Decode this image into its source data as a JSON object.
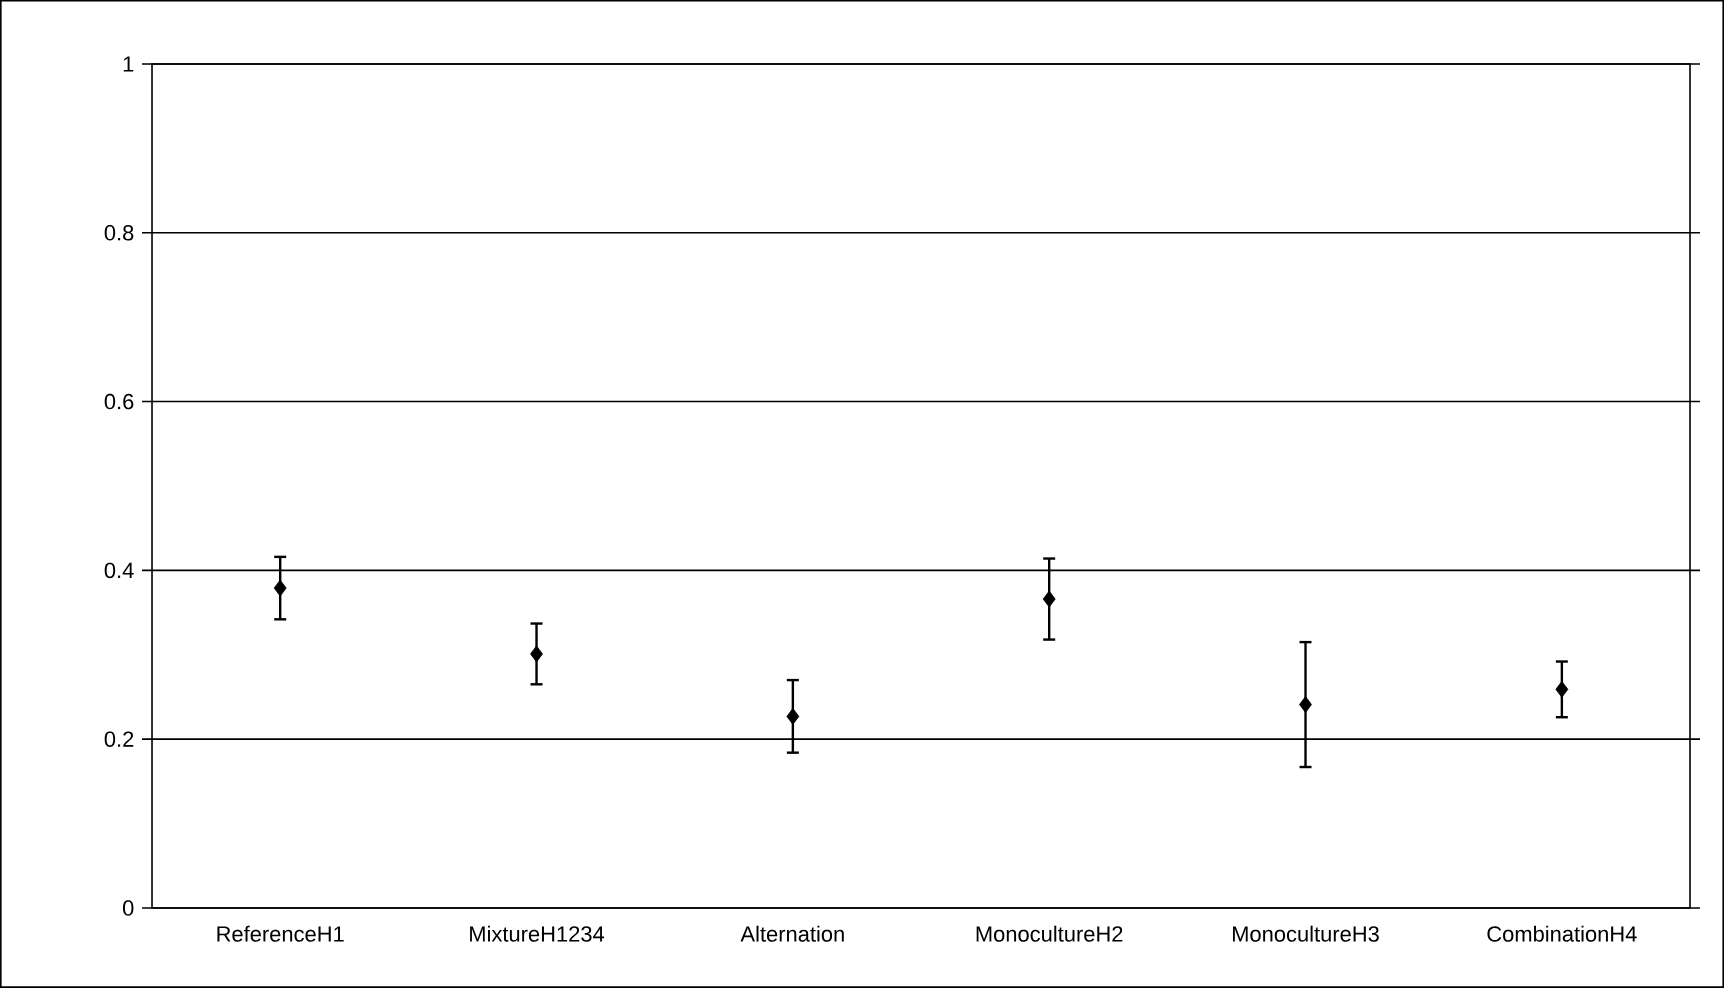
{
  "chart_data": {
    "type": "scatter",
    "categories": [
      "ReferenceH1",
      "MixtureH1234",
      "Alternation",
      "MonocultureH2",
      "MonocultureH3",
      "CombinationH4"
    ],
    "values": [
      0.379,
      0.301,
      0.227,
      0.366,
      0.241,
      0.259
    ],
    "errors": [
      0.037,
      0.036,
      0.043,
      0.048,
      0.074,
      0.033
    ],
    "color": "#000000",
    "marker": "diamond",
    "ylim": [
      0,
      1
    ],
    "yticks": [
      0,
      0.2,
      0.4,
      0.6,
      0.8,
      1
    ],
    "grid": "y"
  }
}
